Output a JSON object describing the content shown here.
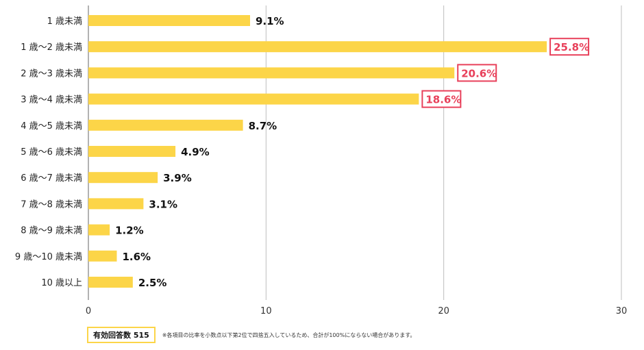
{
  "chart_data": {
    "type": "bar",
    "orientation": "horizontal",
    "categories": [
      "1 歳未満",
      "1 歳～2 歳未満",
      "2 歳～3 歳未満",
      "3 歳～4 歳未満",
      "4 歳～5 歳未満",
      "5 歳～6 歳未満",
      "6 歳～7 歳未満",
      "7 歳～8 歳未満",
      "8 歳～9 歳未満",
      "9 歳～10 歳未満",
      "10 歳以上"
    ],
    "values": [
      9.1,
      25.8,
      20.6,
      18.6,
      8.7,
      4.9,
      3.9,
      3.1,
      1.2,
      1.6,
      2.5
    ],
    "value_labels": [
      "9.1%",
      "25.8%",
      "20.6%",
      "18.6%",
      "8.7%",
      "4.9%",
      "3.9%",
      "3.1%",
      "1.2%",
      "1.6%",
      "2.5%"
    ],
    "highlighted": [
      1,
      2,
      3
    ],
    "xlim": [
      0,
      30
    ],
    "xticks": [
      0,
      10,
      20,
      30
    ],
    "grid": true,
    "bar_color": "#fcd548",
    "highlight_color": "#e8405a",
    "grid_color": "#bdbdbd"
  },
  "footer": {
    "sample_label": "有効回答数 515",
    "note": "※各項目の比率を小数点以下第2位で四捨五入しているため、合計が100%にならない場合があります。"
  }
}
